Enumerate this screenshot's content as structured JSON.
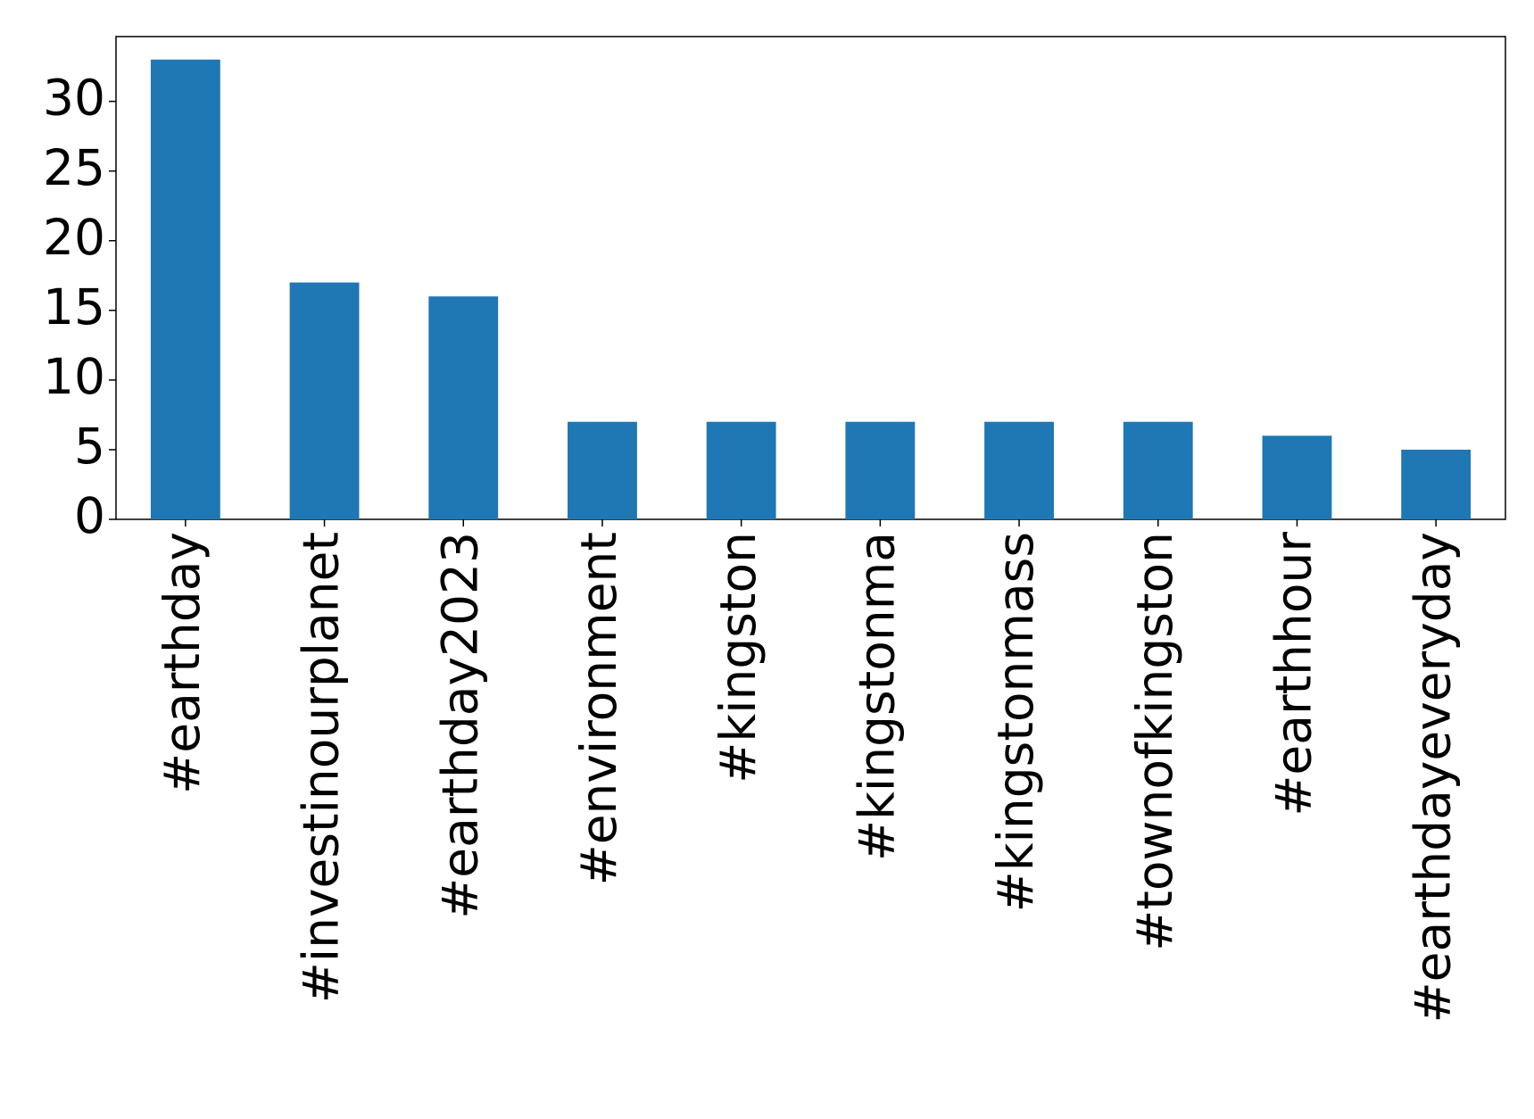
{
  "chart_data": {
    "type": "bar",
    "categories": [
      "#earthday",
      "#investinourplanet",
      "#earthday2023",
      "#environment",
      "#kingston",
      "#kingstonma",
      "#kingstonmass",
      "#townofkingston",
      "#earthhour",
      "#earthdayeveryday"
    ],
    "values": [
      33,
      17,
      16,
      7,
      7,
      7,
      7,
      7,
      6,
      5
    ],
    "color": "#1f77b4",
    "ylim": [
      0,
      34.65
    ],
    "yticks": [
      0,
      5,
      10,
      15,
      20,
      25,
      30
    ],
    "grid": false
  }
}
